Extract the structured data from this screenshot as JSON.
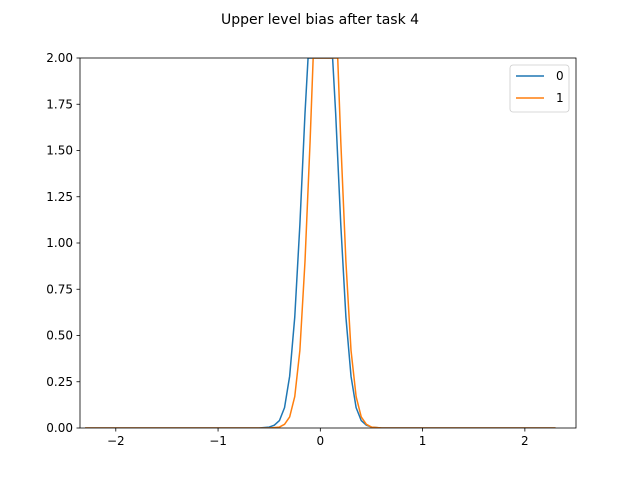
{
  "chart_data": {
    "type": "line",
    "title": "Upper level bias after task 4",
    "xlabel": "",
    "ylabel": "",
    "xlim": [
      -2.35,
      2.5
    ],
    "ylim": [
      0,
      2.0
    ],
    "x_ticks": [
      -2,
      -1,
      0,
      1,
      2
    ],
    "x_tick_labels": [
      "−2",
      "−1",
      "0",
      "1",
      "2"
    ],
    "y_ticks": [
      0,
      0.25,
      0.5,
      0.75,
      1.0,
      1.25,
      1.5,
      1.75,
      2.0
    ],
    "y_tick_labels": [
      "0.00",
      "0.25",
      "0.50",
      "0.75",
      "1.00",
      "1.25",
      "1.50",
      "1.75",
      "2.00"
    ],
    "grid": false,
    "legend_position": "top-right",
    "series": [
      {
        "name": "0",
        "color": "#1f77b4",
        "x": [
          -2.3,
          -1.0,
          -0.6,
          -0.5,
          -0.45,
          -0.4,
          -0.35,
          -0.3,
          -0.25,
          -0.2,
          -0.15,
          -0.12,
          -0.1,
          -0.05,
          0.0,
          0.05,
          0.1,
          0.12,
          0.15,
          0.2,
          0.25,
          0.3,
          0.35,
          0.4,
          0.45,
          0.5,
          0.6,
          1.0,
          2.3
        ],
        "y": [
          0,
          0,
          0.0,
          0.005,
          0.015,
          0.04,
          0.11,
          0.28,
          0.6,
          1.1,
          1.7,
          2.0,
          2.0,
          2.0,
          2.0,
          2.0,
          2.0,
          2.0,
          1.7,
          1.1,
          0.6,
          0.28,
          0.11,
          0.04,
          0.015,
          0.005,
          0.0,
          0,
          0
        ]
      },
      {
        "name": "1",
        "color": "#ff7f0e",
        "x": [
          -2.3,
          -1.0,
          -0.5,
          -0.4,
          -0.35,
          -0.3,
          -0.25,
          -0.2,
          -0.15,
          -0.1,
          -0.07,
          -0.05,
          0.0,
          0.05,
          0.1,
          0.15,
          0.17,
          0.2,
          0.25,
          0.3,
          0.35,
          0.4,
          0.45,
          0.5,
          0.6,
          1.0,
          2.3
        ],
        "y": [
          0,
          0,
          0.0,
          0.005,
          0.02,
          0.06,
          0.17,
          0.42,
          0.9,
          1.55,
          2.0,
          2.0,
          2.0,
          2.0,
          2.0,
          2.0,
          2.0,
          1.55,
          0.9,
          0.42,
          0.17,
          0.06,
          0.02,
          0.005,
          0.0,
          0,
          0
        ]
      }
    ]
  }
}
